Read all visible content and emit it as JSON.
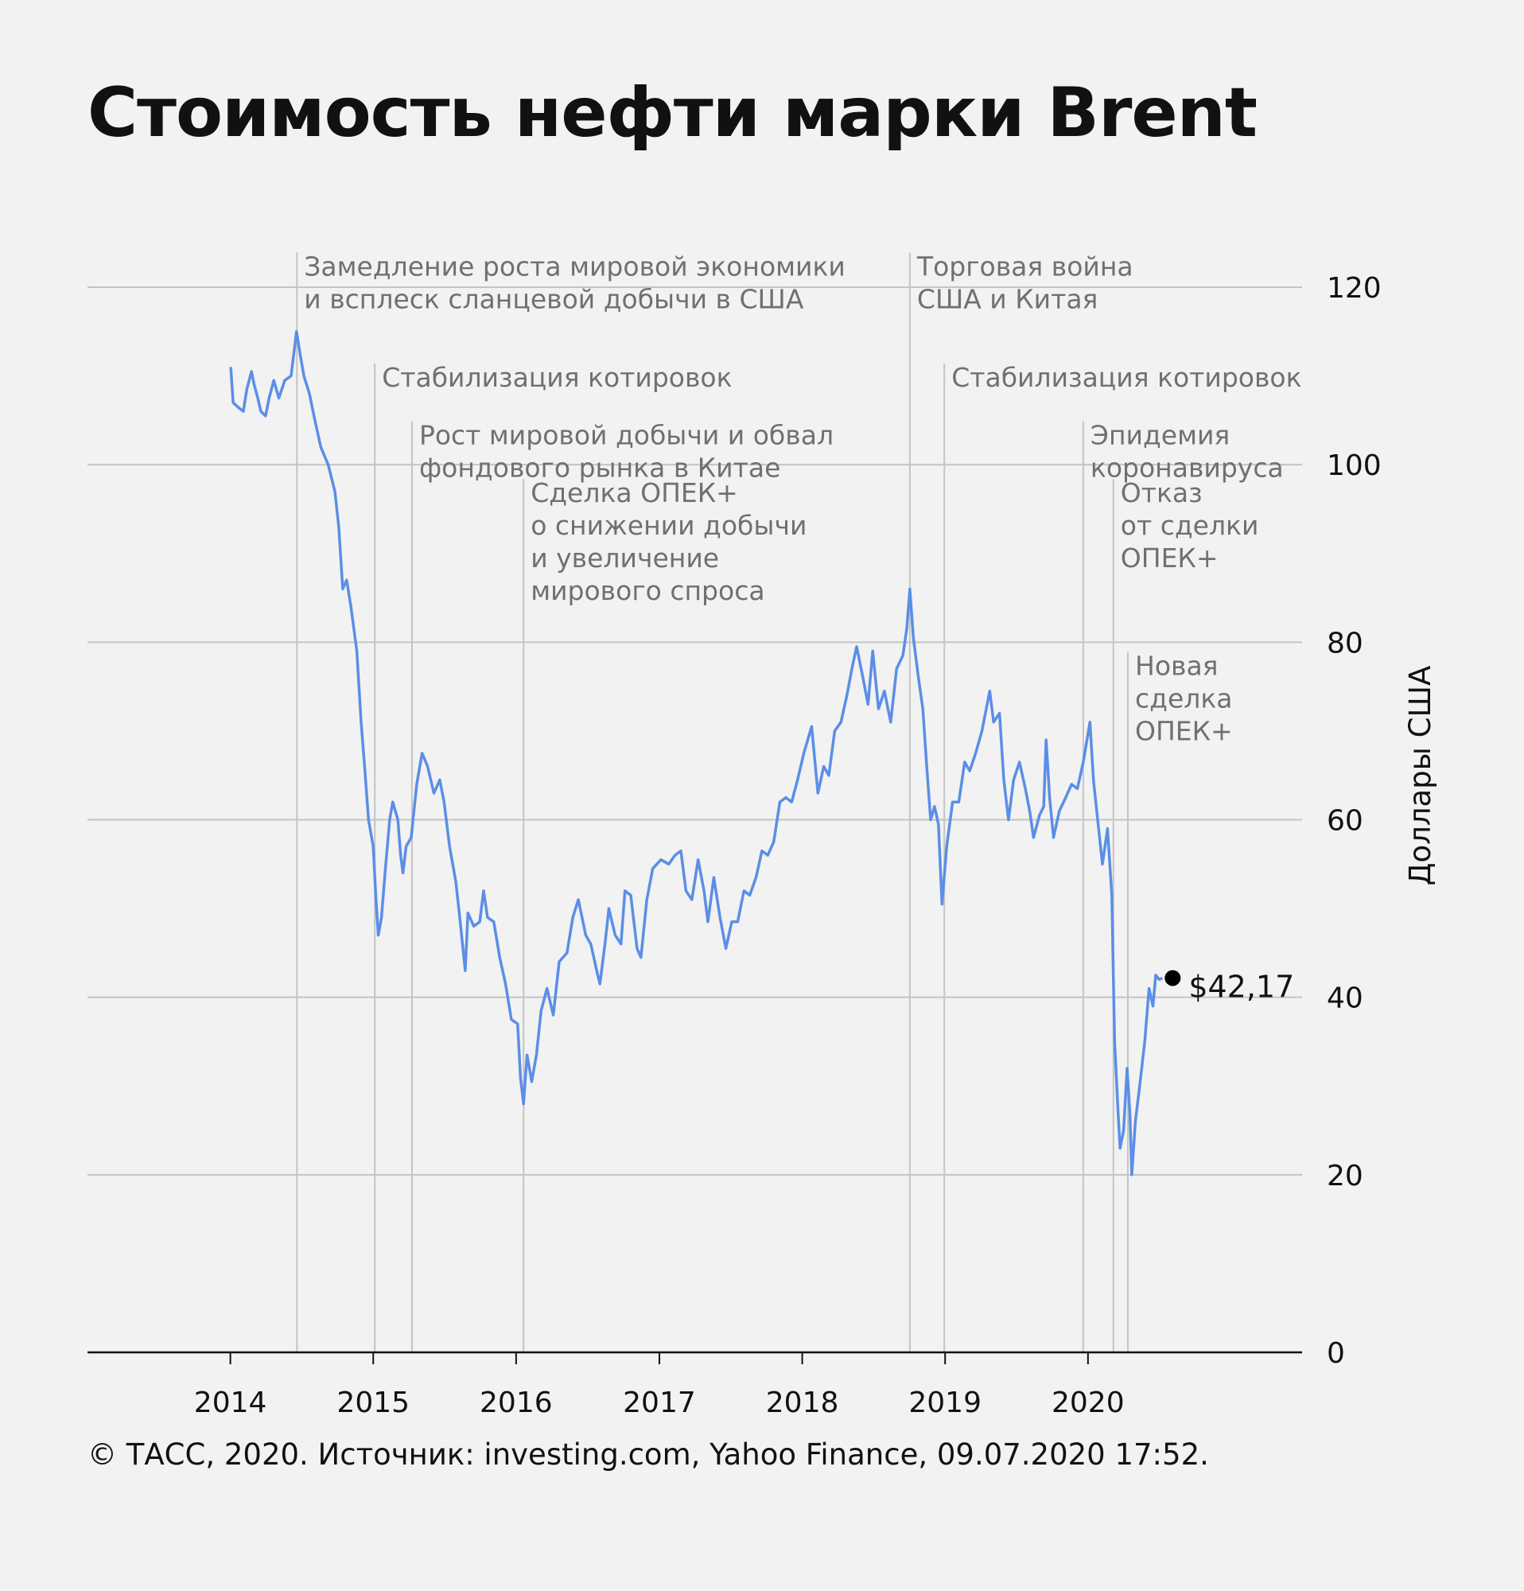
{
  "title": "Стоимость нефти марки Brent",
  "footer": "© ТАСС, 2020. Источник: investing.com, Yahoo Finance, 09.07.2020 17:52.",
  "colors": {
    "line": "#5b8ee6",
    "grid": "#c4c4c4",
    "background": "#f2f2f2",
    "marker": "#000000"
  },
  "chart_data": {
    "type": "line",
    "ylabel": "Доллары США",
    "ylim": [
      0,
      120
    ],
    "yticks": [
      0,
      20,
      40,
      60,
      80,
      100,
      120
    ],
    "xlim": [
      "2013-01-01",
      "2021-07-01"
    ],
    "xticks": [
      {
        "date": "2014-01-01",
        "label": "2014"
      },
      {
        "date": "2015-01-01",
        "label": "2015"
      },
      {
        "date": "2016-01-01",
        "label": "2016"
      },
      {
        "date": "2017-01-01",
        "label": "2017"
      },
      {
        "date": "2018-01-01",
        "label": "2018"
      },
      {
        "date": "2019-01-01",
        "label": "2019"
      },
      {
        "date": "2020-01-01",
        "label": "2020"
      }
    ],
    "grid": true,
    "last_value": {
      "date": "2020-07-09",
      "value": 42.17,
      "label": "$42,17"
    },
    "series": [
      {
        "points": [
          [
            "2014-01-02",
            111
          ],
          [
            "2014-01-08",
            107
          ],
          [
            "2014-01-20",
            106.5
          ],
          [
            "2014-02-03",
            106
          ],
          [
            "2014-02-12",
            108.5
          ],
          [
            "2014-02-24",
            110.5
          ],
          [
            "2014-03-03",
            109
          ],
          [
            "2014-03-12",
            107.5
          ],
          [
            "2014-03-20",
            106
          ],
          [
            "2014-04-01",
            105.5
          ],
          [
            "2014-04-10",
            107.5
          ],
          [
            "2014-04-22",
            109.5
          ],
          [
            "2014-05-05",
            107.5
          ],
          [
            "2014-05-20",
            109.5
          ],
          [
            "2014-06-05",
            110
          ],
          [
            "2014-06-19",
            115
          ],
          [
            "2014-06-28",
            112.5
          ],
          [
            "2014-07-08",
            110
          ],
          [
            "2014-07-22",
            108
          ],
          [
            "2014-08-05",
            105
          ],
          [
            "2014-08-20",
            102
          ],
          [
            "2014-09-08",
            100
          ],
          [
            "2014-09-25",
            97
          ],
          [
            "2014-10-05",
            93
          ],
          [
            "2014-10-15",
            86
          ],
          [
            "2014-10-25",
            87
          ],
          [
            "2014-11-05",
            84
          ],
          [
            "2014-11-20",
            79
          ],
          [
            "2014-12-01",
            71
          ],
          [
            "2014-12-10",
            66
          ],
          [
            "2014-12-20",
            60
          ],
          [
            "2015-01-01",
            57
          ],
          [
            "2015-01-08",
            51
          ],
          [
            "2015-01-14",
            47
          ],
          [
            "2015-01-22",
            49
          ],
          [
            "2015-02-02",
            55
          ],
          [
            "2015-02-12",
            60
          ],
          [
            "2015-02-20",
            62
          ],
          [
            "2015-03-05",
            60
          ],
          [
            "2015-03-12",
            56
          ],
          [
            "2015-03-18",
            54
          ],
          [
            "2015-03-26",
            57
          ],
          [
            "2015-04-08",
            58
          ],
          [
            "2015-04-22",
            64
          ],
          [
            "2015-05-06",
            67.5
          ],
          [
            "2015-05-20",
            66
          ],
          [
            "2015-06-05",
            63
          ],
          [
            "2015-06-20",
            64.5
          ],
          [
            "2015-07-01",
            62
          ],
          [
            "2015-07-15",
            57
          ],
          [
            "2015-07-31",
            53
          ],
          [
            "2015-08-10",
            49
          ],
          [
            "2015-08-24",
            43
          ],
          [
            "2015-08-31",
            49.5
          ],
          [
            "2015-09-15",
            48
          ],
          [
            "2015-09-30",
            48.5
          ],
          [
            "2015-10-10",
            52
          ],
          [
            "2015-10-20",
            49
          ],
          [
            "2015-11-05",
            48.5
          ],
          [
            "2015-11-20",
            44.5
          ],
          [
            "2015-12-05",
            41.5
          ],
          [
            "2015-12-20",
            37.5
          ],
          [
            "2016-01-05",
            37
          ],
          [
            "2016-01-12",
            31
          ],
          [
            "2016-01-20",
            28
          ],
          [
            "2016-01-29",
            33.5
          ],
          [
            "2016-02-10",
            30.5
          ],
          [
            "2016-02-22",
            33.5
          ],
          [
            "2016-03-05",
            38.5
          ],
          [
            "2016-03-20",
            41
          ],
          [
            "2016-04-05",
            38
          ],
          [
            "2016-04-20",
            44
          ],
          [
            "2016-05-10",
            45
          ],
          [
            "2016-05-25",
            49
          ],
          [
            "2016-06-08",
            51
          ],
          [
            "2016-06-27",
            47
          ],
          [
            "2016-07-10",
            46
          ],
          [
            "2016-07-25",
            43
          ],
          [
            "2016-08-02",
            41.5
          ],
          [
            "2016-08-15",
            46
          ],
          [
            "2016-08-25",
            50
          ],
          [
            "2016-09-10",
            47
          ],
          [
            "2016-09-25",
            46
          ],
          [
            "2016-10-05",
            52
          ],
          [
            "2016-10-20",
            51.5
          ],
          [
            "2016-11-05",
            45.5
          ],
          [
            "2016-11-15",
            44.5
          ],
          [
            "2016-11-30",
            51
          ],
          [
            "2016-12-15",
            54.5
          ],
          [
            "2017-01-05",
            55.5
          ],
          [
            "2017-01-25",
            55
          ],
          [
            "2017-02-10",
            56
          ],
          [
            "2017-02-25",
            56.5
          ],
          [
            "2017-03-10",
            52
          ],
          [
            "2017-03-25",
            51
          ],
          [
            "2017-04-10",
            55.5
          ],
          [
            "2017-04-25",
            52
          ],
          [
            "2017-05-05",
            48.5
          ],
          [
            "2017-05-20",
            53.5
          ],
          [
            "2017-06-05",
            49
          ],
          [
            "2017-06-20",
            45.5
          ],
          [
            "2017-07-05",
            48.5
          ],
          [
            "2017-07-20",
            48.5
          ],
          [
            "2017-08-05",
            52
          ],
          [
            "2017-08-20",
            51.5
          ],
          [
            "2017-09-05",
            53.5
          ],
          [
            "2017-09-20",
            56.5
          ],
          [
            "2017-10-05",
            56
          ],
          [
            "2017-10-20",
            57.5
          ],
          [
            "2017-11-05",
            62
          ],
          [
            "2017-11-20",
            62.5
          ],
          [
            "2017-12-05",
            62
          ],
          [
            "2017-12-20",
            64.5
          ],
          [
            "2018-01-05",
            67.5
          ],
          [
            "2018-01-25",
            70.5
          ],
          [
            "2018-02-10",
            63
          ],
          [
            "2018-02-25",
            66
          ],
          [
            "2018-03-10",
            65
          ],
          [
            "2018-03-25",
            70
          ],
          [
            "2018-04-10",
            71
          ],
          [
            "2018-04-25",
            74
          ],
          [
            "2018-05-10",
            77.5
          ],
          [
            "2018-05-20",
            79.5
          ],
          [
            "2018-06-05",
            76
          ],
          [
            "2018-06-18",
            73
          ],
          [
            "2018-06-30",
            79
          ],
          [
            "2018-07-15",
            72.5
          ],
          [
            "2018-07-30",
            74.5
          ],
          [
            "2018-08-15",
            71
          ],
          [
            "2018-08-30",
            77
          ],
          [
            "2018-09-15",
            78.5
          ],
          [
            "2018-09-25",
            81.5
          ],
          [
            "2018-10-03",
            86
          ],
          [
            "2018-10-12",
            80.5
          ],
          [
            "2018-10-25",
            76
          ],
          [
            "2018-11-05",
            72.5
          ],
          [
            "2018-11-15",
            66
          ],
          [
            "2018-11-25",
            60
          ],
          [
            "2018-12-05",
            61.5
          ],
          [
            "2018-12-15",
            59.5
          ],
          [
            "2018-12-24",
            50.5
          ],
          [
            "2019-01-05",
            57
          ],
          [
            "2019-01-20",
            62
          ],
          [
            "2019-02-05",
            62
          ],
          [
            "2019-02-20",
            66.5
          ],
          [
            "2019-03-05",
            65.5
          ],
          [
            "2019-03-20",
            67.5
          ],
          [
            "2019-04-05",
            70
          ],
          [
            "2019-04-25",
            74.5
          ],
          [
            "2019-05-05",
            71
          ],
          [
            "2019-05-20",
            72
          ],
          [
            "2019-05-31",
            64.5
          ],
          [
            "2019-06-12",
            60
          ],
          [
            "2019-06-25",
            64.5
          ],
          [
            "2019-07-10",
            66.5
          ],
          [
            "2019-07-25",
            63.5
          ],
          [
            "2019-08-05",
            61
          ],
          [
            "2019-08-15",
            58
          ],
          [
            "2019-08-30",
            60.5
          ],
          [
            "2019-09-10",
            61.5
          ],
          [
            "2019-09-16",
            69
          ],
          [
            "2019-09-25",
            62.5
          ],
          [
            "2019-10-05",
            58
          ],
          [
            "2019-10-20",
            61
          ],
          [
            "2019-11-05",
            62.5
          ],
          [
            "2019-11-20",
            64
          ],
          [
            "2019-12-05",
            63.5
          ],
          [
            "2019-12-20",
            66.5
          ],
          [
            "2020-01-06",
            71
          ],
          [
            "2020-01-15",
            64.5
          ],
          [
            "2020-01-27",
            59.5
          ],
          [
            "2020-02-07",
            55
          ],
          [
            "2020-02-20",
            59
          ],
          [
            "2020-03-02",
            51.5
          ],
          [
            "2020-03-09",
            35
          ],
          [
            "2020-03-18",
            27
          ],
          [
            "2020-03-23",
            23
          ],
          [
            "2020-04-01",
            25
          ],
          [
            "2020-04-10",
            32
          ],
          [
            "2020-04-17",
            27
          ],
          [
            "2020-04-22",
            20
          ],
          [
            "2020-05-01",
            26
          ],
          [
            "2020-05-12",
            30
          ],
          [
            "2020-05-25",
            35
          ],
          [
            "2020-06-05",
            41
          ],
          [
            "2020-06-15",
            39
          ],
          [
            "2020-06-22",
            42.5
          ],
          [
            "2020-07-01",
            42
          ],
          [
            "2020-07-09",
            42.17
          ]
        ]
      }
    ],
    "annotations": [
      {
        "date": "2014-06-20",
        "top": 123,
        "lines": [
          "Замедление роста мировой экономики",
          "и всплеск сланцевой добычи в США"
        ]
      },
      {
        "date": "2015-01-05",
        "top": 110.5,
        "lines": [
          "Стабилизация котировок"
        ]
      },
      {
        "date": "2015-04-10",
        "top": 104,
        "lines": [
          "Рост мировой добычи и обвал",
          "фондового рынка в Китае"
        ]
      },
      {
        "date": "2016-01-20",
        "top": 97.5,
        "lines": [
          "Сделка ОПЕК+",
          "о снижении добычи",
          "и увеличение",
          "мирового спроса"
        ]
      },
      {
        "date": "2018-10-03",
        "top": 123,
        "lines": [
          "Торговая война",
          "США и Китая"
        ]
      },
      {
        "date": "2018-12-30",
        "top": 110.5,
        "lines": [
          "Стабилизация котировок"
        ]
      },
      {
        "date": "2019-12-20",
        "top": 104,
        "lines": [
          "Эпидемия",
          "коронавируса"
        ]
      },
      {
        "date": "2020-03-06",
        "top": 97.5,
        "lines": [
          "Отказ",
          "от сделки",
          "ОПЕК+"
        ]
      },
      {
        "date": "2020-04-12",
        "top": 78,
        "lines": [
          "Новая",
          "сделка",
          "ОПЕК+"
        ]
      }
    ]
  }
}
